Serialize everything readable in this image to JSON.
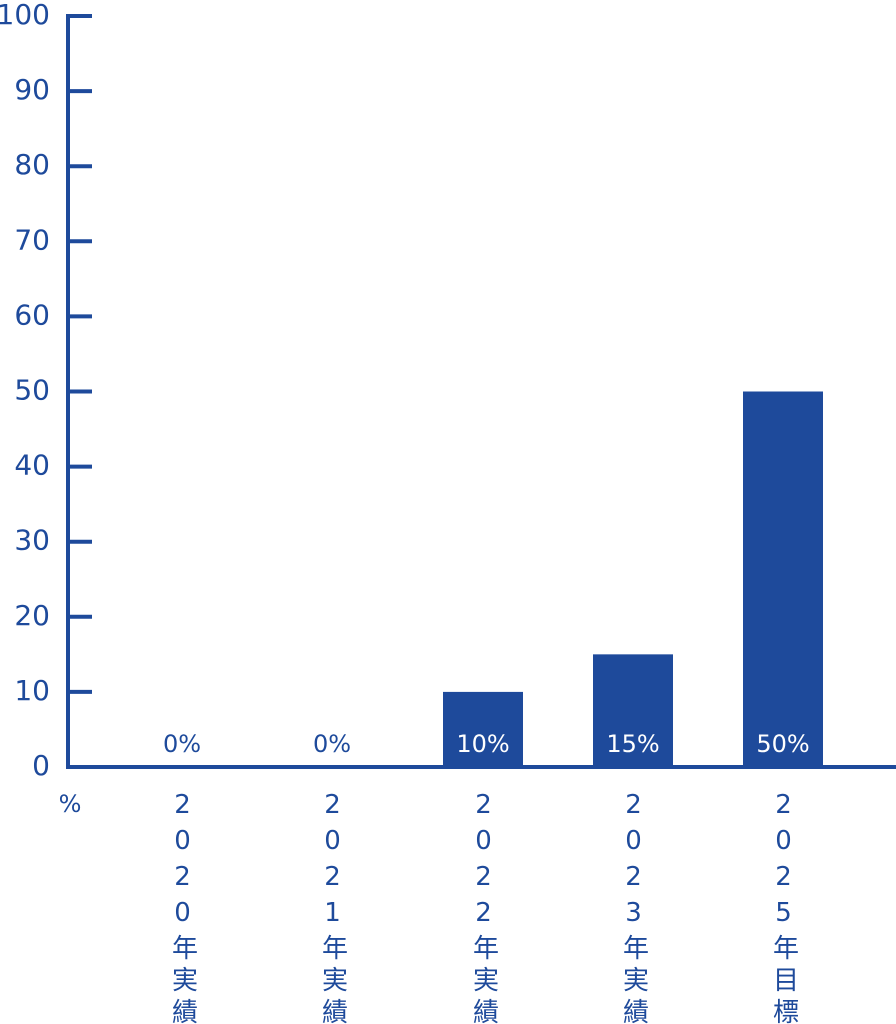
{
  "chart_data": {
    "type": "bar",
    "categories": [
      "2020年実績",
      "2021年実績",
      "2022年実績",
      "2023年実績",
      "2025年目標"
    ],
    "values": [
      0,
      0,
      10,
      15,
      50
    ],
    "value_labels": [
      "0%",
      "0%",
      "10%",
      "15%",
      "50%"
    ],
    "color": "#1e4a9b",
    "unit": "%",
    "ylim": [
      0,
      100
    ],
    "yticks": [
      0,
      10,
      20,
      30,
      40,
      50,
      60,
      70,
      80,
      90,
      100
    ]
  }
}
